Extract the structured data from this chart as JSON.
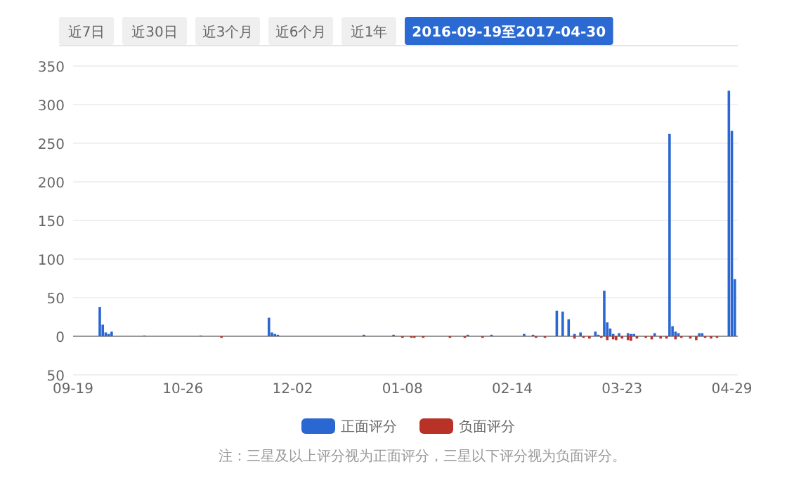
{
  "chart_data": {
    "type": "bar",
    "annotations": [
      "近7日",
      "近30日",
      "近3个月",
      "近6个月",
      "近1年",
      "2016-09-19至2017-04-30",
      "注：三星及以上评分视为正面评分，三星以下评分视为负面评分。"
    ],
    "xlim": [
      "2016-09-19",
      "2017-05-01"
    ],
    "xticks": [
      {
        "value": "2016-09-19",
        "label": "09-19"
      },
      {
        "value": "2016-10-26",
        "label": "10-26"
      },
      {
        "value": "2016-12-02",
        "label": "12-02"
      },
      {
        "value": "2017-01-08",
        "label": "01-08"
      },
      {
        "value": "2017-02-14",
        "label": "02-14"
      },
      {
        "value": "2017-03-23",
        "label": "03-23"
      },
      {
        "value": "2017-04-29",
        "label": "04-29"
      }
    ],
    "ylim": [
      -50,
      350
    ],
    "yticks": [
      {
        "value": -50,
        "label": "50"
      },
      0,
      50,
      100,
      150,
      200,
      250,
      300,
      350
    ],
    "grid": "y",
    "legend": "bottom",
    "series": [
      {
        "name": "正面评分",
        "color": "#2a67d0",
        "x": [
          "2016-09-28",
          "2016-09-29",
          "2016-09-30",
          "2016-10-01",
          "2016-10-02",
          "2016-10-13",
          "2016-11-01",
          "2016-11-24",
          "2016-11-25",
          "2016-11-26",
          "2016-11-27",
          "2016-12-26",
          "2017-01-05",
          "2017-01-30",
          "2017-02-07",
          "2017-02-18",
          "2017-02-21",
          "2017-03-01",
          "2017-03-03",
          "2017-03-05",
          "2017-03-07",
          "2017-03-09",
          "2017-03-14",
          "2017-03-15",
          "2017-03-17",
          "2017-03-18",
          "2017-03-19",
          "2017-03-20",
          "2017-03-22",
          "2017-03-25",
          "2017-03-26",
          "2017-03-27",
          "2017-04-03",
          "2017-04-08",
          "2017-04-09",
          "2017-04-10",
          "2017-04-11",
          "2017-04-18",
          "2017-04-19",
          "2017-04-28",
          "2017-04-29",
          "2017-04-30"
        ],
        "values": [
          38,
          15,
          5,
          3,
          6,
          1,
          1,
          24,
          5,
          3,
          2,
          2,
          2,
          2,
          2,
          3,
          2,
          33,
          32,
          22,
          3,
          5,
          6,
          2,
          59,
          18,
          10,
          3,
          4,
          4,
          3,
          3,
          4,
          262,
          13,
          6,
          4,
          4,
          4,
          318,
          266,
          74
        ]
      },
      {
        "name": "负面评分",
        "color": "#b83227",
        "x": [
          "2016-11-08",
          "2017-01-08",
          "2017-01-11",
          "2017-01-12",
          "2017-01-15",
          "2017-01-24",
          "2017-01-29",
          "2017-02-04",
          "2017-02-22",
          "2017-02-25",
          "2017-03-07",
          "2017-03-10",
          "2017-03-12",
          "2017-03-16",
          "2017-03-18",
          "2017-03-20",
          "2017-03-21",
          "2017-03-23",
          "2017-03-25",
          "2017-03-26",
          "2017-03-28",
          "2017-03-31",
          "2017-04-02",
          "2017-04-05",
          "2017-04-07",
          "2017-04-10",
          "2017-04-12",
          "2017-04-15",
          "2017-04-17",
          "2017-04-20",
          "2017-04-22",
          "2017-04-24"
        ],
        "values": [
          -2,
          -2,
          -2,
          -2,
          -2,
          -2,
          -2,
          -2,
          -2,
          -2,
          -3,
          -2,
          -3,
          -2,
          -5,
          -4,
          -5,
          -3,
          -5,
          -6,
          -3,
          -2,
          -4,
          -3,
          -3,
          -4,
          -2,
          -3,
          -5,
          -2,
          -3,
          -2
        ]
      }
    ]
  }
}
